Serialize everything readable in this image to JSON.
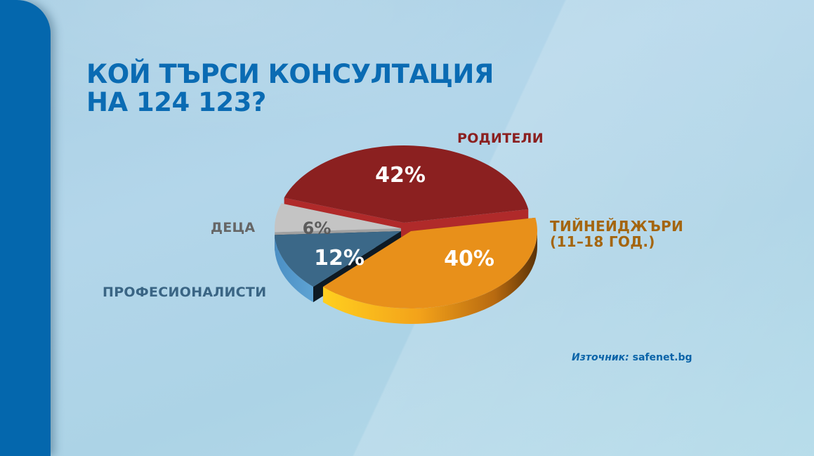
{
  "title": {
    "line1": "КОЙ ТЪРСИ КОНСУЛТАЦИЯ",
    "line2": "НА 124 123?"
  },
  "labels": {
    "parents": "РОДИТЕЛИ",
    "teens_line1": "ТИЙНЕЙДЖЪРИ",
    "teens_line2": "(11–18 ГОД.)",
    "children": "ДЕЦА",
    "professionals": "ПРОФЕСИОНАЛИСТИ"
  },
  "source": {
    "label": "Източник:",
    "value": "safenet.bg"
  },
  "colors": {
    "sidebar": "#0467ad",
    "title": "#0a6bb3",
    "parents": "#8b2020",
    "teens": "#e8901a",
    "children": "#c4c4c4",
    "professionals": "#3b6888"
  },
  "chart_data": {
    "type": "pie",
    "title": "КОЙ ТЪРСИ КОНСУЛТАЦИЯ НА 124 123?",
    "categories": [
      "РОДИТЕЛИ",
      "ТИЙНЕЙДЖЪРИ (11–18 ГОД.)",
      "ПРОФЕСИОНАЛИСТИ",
      "ДЕЦА"
    ],
    "values": [
      42,
      40,
      12,
      6
    ],
    "value_labels": [
      "42%",
      "40%",
      "12%",
      "6%"
    ],
    "unit": "%",
    "style": "3d-exploded",
    "exploded": [
      "ТИЙНЕЙДЖЪРИ (11–18 ГОД.)"
    ],
    "source": "Източник: safenet.bg"
  }
}
